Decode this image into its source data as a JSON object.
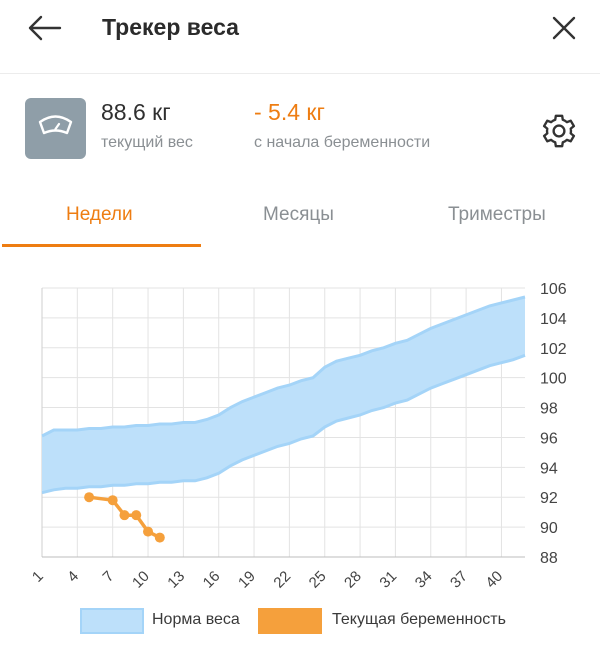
{
  "header": {
    "title": "Трекер веса",
    "back_icon": "arrow-left-icon",
    "close_icon": "close-icon"
  },
  "summary": {
    "current_weight": "88.6 кг",
    "current_weight_label": "текущий вес",
    "weight_change": "- 5.4 кг",
    "weight_change_label": "с начала беременности",
    "scale_icon": "scale-icon",
    "settings_icon": "gear-icon"
  },
  "tabs": [
    {
      "label": "Недели",
      "active": true
    },
    {
      "label": "Месяцы",
      "active": false
    },
    {
      "label": "Триместры",
      "active": false
    }
  ],
  "colors": {
    "accent": "#ee7d12",
    "norm_fill": "#bde0fa",
    "norm_line": "#a4d4f8",
    "current_line": "#f5a03c"
  },
  "legend": {
    "norm_label": "Норма веса",
    "current_label": "Текущая беременность"
  },
  "chart_data": {
    "type": "area",
    "x_ticks": [
      "1",
      "4",
      "7",
      "10",
      "13",
      "16",
      "19",
      "22",
      "25",
      "28",
      "31",
      "34",
      "37",
      "40"
    ],
    "y_ticks": [
      "106",
      "104",
      "102",
      "100",
      "98",
      "96",
      "94",
      "92",
      "90",
      "88"
    ],
    "xlim": [
      1,
      42
    ],
    "ylim": [
      88,
      106
    ],
    "grid": true,
    "legend_position": "bottom",
    "series": [
      {
        "name": "Норма веса",
        "type": "band",
        "x": [
          1,
          2,
          3,
          4,
          5,
          6,
          7,
          8,
          9,
          10,
          11,
          12,
          13,
          14,
          15,
          16,
          17,
          18,
          19,
          20,
          21,
          22,
          23,
          24,
          25,
          26,
          27,
          28,
          29,
          30,
          31,
          32,
          33,
          34,
          35,
          36,
          37,
          38,
          39,
          40,
          41,
          42
        ],
        "upper": [
          96.1,
          96.5,
          96.5,
          96.5,
          96.6,
          96.6,
          96.7,
          96.7,
          96.8,
          96.8,
          96.9,
          96.9,
          97.0,
          97.0,
          97.2,
          97.5,
          98.0,
          98.4,
          98.7,
          99.0,
          99.3,
          99.5,
          99.8,
          100.0,
          100.7,
          101.1,
          101.3,
          101.5,
          101.8,
          102.0,
          102.3,
          102.5,
          102.9,
          103.3,
          103.6,
          103.9,
          104.2,
          104.5,
          104.8,
          105.0,
          105.2,
          105.4
        ],
        "lower": [
          92.3,
          92.5,
          92.6,
          92.6,
          92.7,
          92.7,
          92.8,
          92.8,
          92.9,
          92.9,
          93.0,
          93.0,
          93.1,
          93.1,
          93.3,
          93.6,
          94.1,
          94.5,
          94.8,
          95.1,
          95.4,
          95.6,
          95.9,
          96.1,
          96.7,
          97.1,
          97.3,
          97.5,
          97.8,
          98.0,
          98.3,
          98.5,
          98.9,
          99.3,
          99.6,
          99.9,
          100.2,
          100.5,
          100.8,
          101.0,
          101.2,
          101.5
        ]
      },
      {
        "name": "Текущая беременность",
        "type": "line",
        "x": [
          5,
          7,
          8,
          9,
          10,
          11
        ],
        "y": [
          92.0,
          91.8,
          90.8,
          90.8,
          89.7,
          89.3
        ]
      }
    ]
  }
}
